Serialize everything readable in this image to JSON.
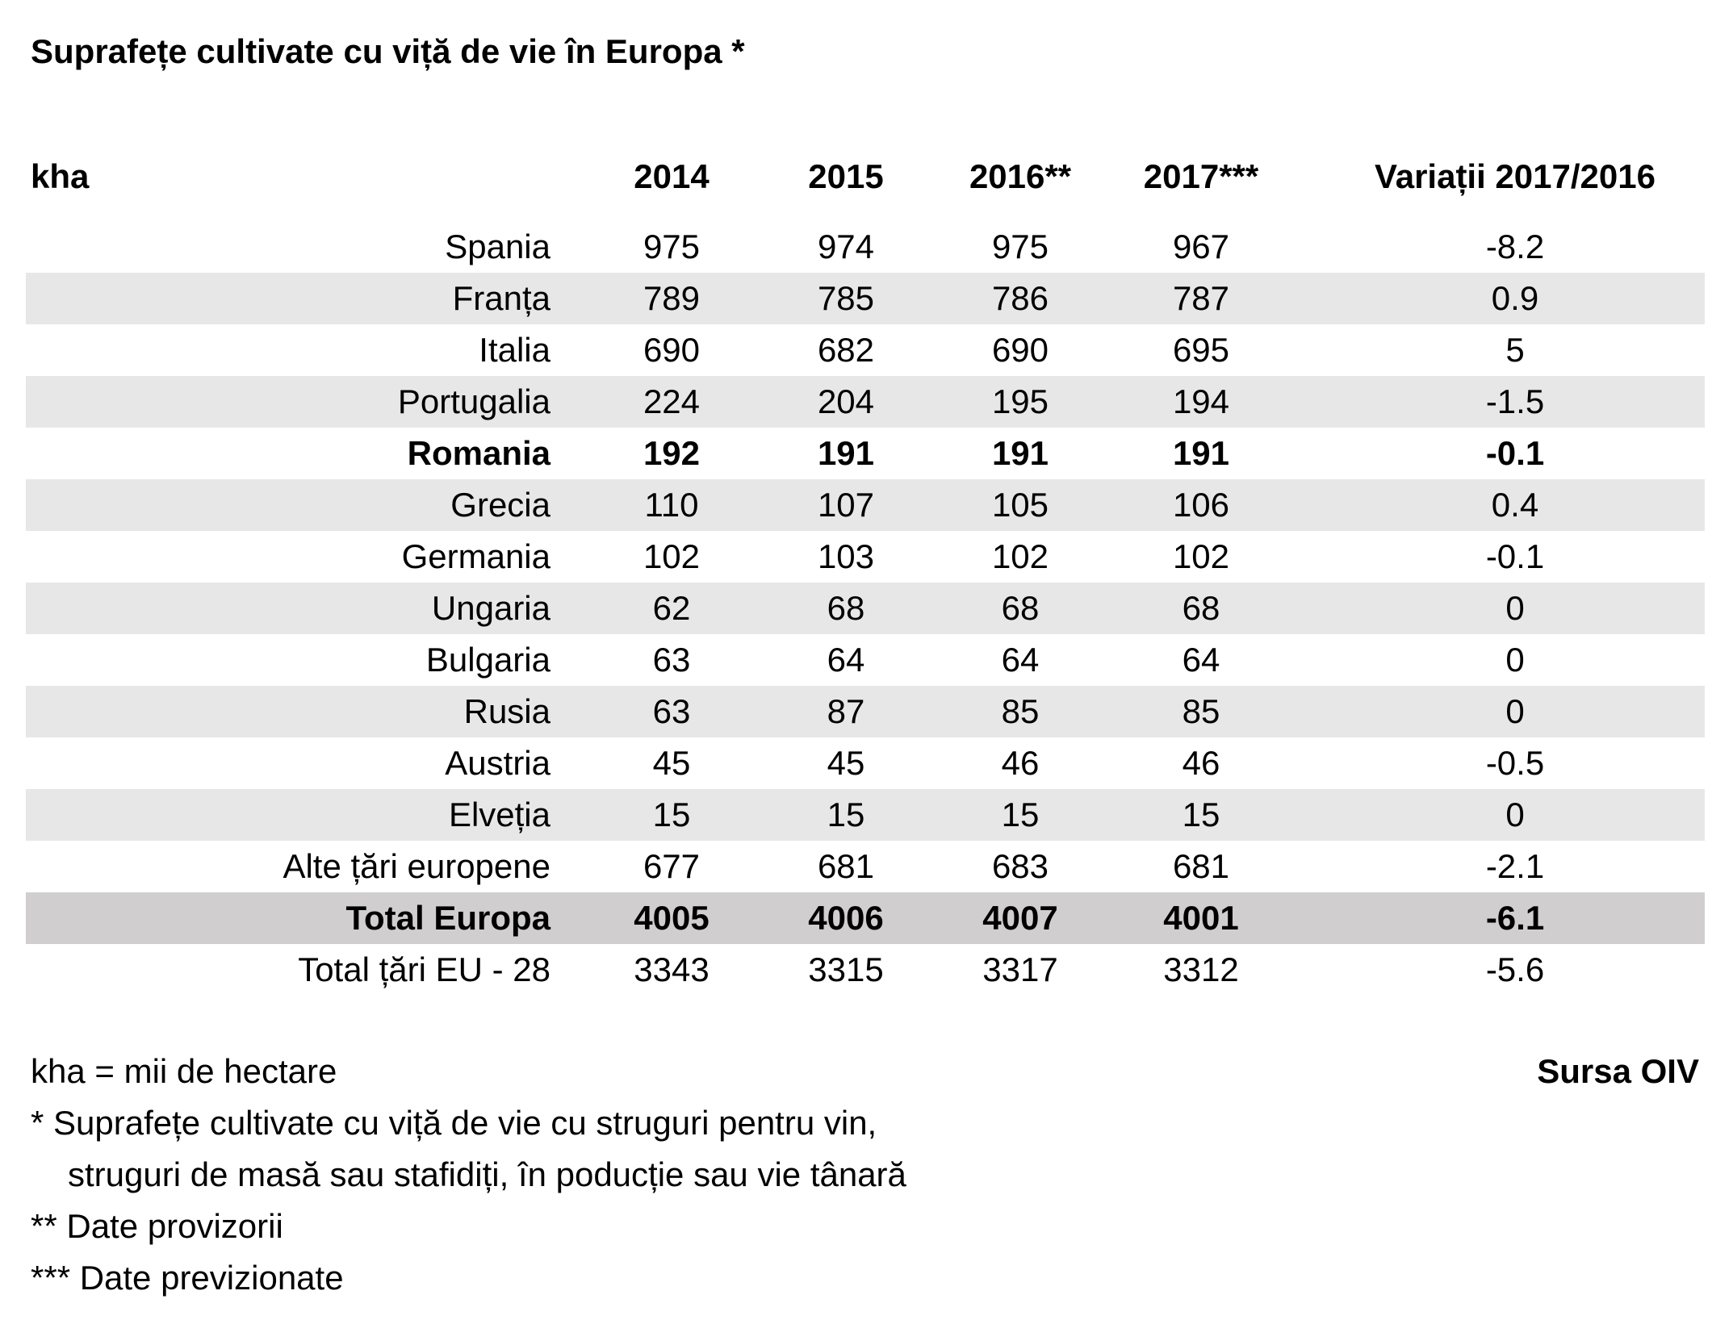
{
  "title": "Suprafețe cultivate cu viță de vie în Europa *",
  "header": {
    "unit": "kha",
    "y2014": "2014",
    "y2015": "2015",
    "y2016": "2016**",
    "y2017": "2017***",
    "variation": "Variații  2017/2016"
  },
  "rows": [
    {
      "country": "Spania",
      "v2014": "975",
      "v2015": "974",
      "v2016": "975",
      "v2017": "967",
      "variation": "-8.2"
    },
    {
      "country": "Franța",
      "v2014": "789",
      "v2015": "785",
      "v2016": "786",
      "v2017": "787",
      "variation": "0.9"
    },
    {
      "country": "Italia",
      "v2014": "690",
      "v2015": "682",
      "v2016": "690",
      "v2017": "695",
      "variation": "5"
    },
    {
      "country": "Portugalia",
      "v2014": "224",
      "v2015": "204",
      "v2016": "195",
      "v2017": "194",
      "variation": "-1.5"
    },
    {
      "country": "Romania",
      "v2014": "192",
      "v2015": "191",
      "v2016": "191",
      "v2017": "191",
      "variation": "-0.1"
    },
    {
      "country": "Grecia",
      "v2014": "110",
      "v2015": "107",
      "v2016": "105",
      "v2017": "106",
      "variation": "0.4"
    },
    {
      "country": "Germania",
      "v2014": "102",
      "v2015": "103",
      "v2016": "102",
      "v2017": "102",
      "variation": "-0.1"
    },
    {
      "country": "Ungaria",
      "v2014": "62",
      "v2015": "68",
      "v2016": "68",
      "v2017": "68",
      "variation": "0"
    },
    {
      "country": "Bulgaria",
      "v2014": "63",
      "v2015": "64",
      "v2016": "64",
      "v2017": "64",
      "variation": "0"
    },
    {
      "country": "Rusia",
      "v2014": "63",
      "v2015": "87",
      "v2016": "85",
      "v2017": "85",
      "variation": "0"
    },
    {
      "country": "Austria",
      "v2014": "45",
      "v2015": "45",
      "v2016": "46",
      "v2017": "46",
      "variation": "-0.5"
    },
    {
      "country": "Elveția",
      "v2014": "15",
      "v2015": "15",
      "v2016": "15",
      "v2017": "15",
      "variation": "0"
    },
    {
      "country": "Alte țări europene",
      "v2014": "677",
      "v2015": "681",
      "v2016": "683",
      "v2017": "681",
      "variation": "-2.1"
    },
    {
      "country": "Total Europa",
      "v2014": "4005",
      "v2015": "4006",
      "v2016": "4007",
      "v2017": "4001",
      "variation": "-6.1"
    },
    {
      "country": "Total țări EU - 28",
      "v2014": "3343",
      "v2015": "3315",
      "v2016": "3317",
      "v2017": "3312",
      "variation": "-5.6"
    }
  ],
  "notes": {
    "kha": "kha = mii de hectare",
    "note1_line1": "* Suprafețe cultivate cu viță de vie cu struguri pentru vin,",
    "note1_line2": "struguri de masă sau stafidiți, în poducție sau vie tânară",
    "note2": "** Date provizorii",
    "note3": "*** Date previzionate"
  },
  "source": "Sursa OIV"
}
